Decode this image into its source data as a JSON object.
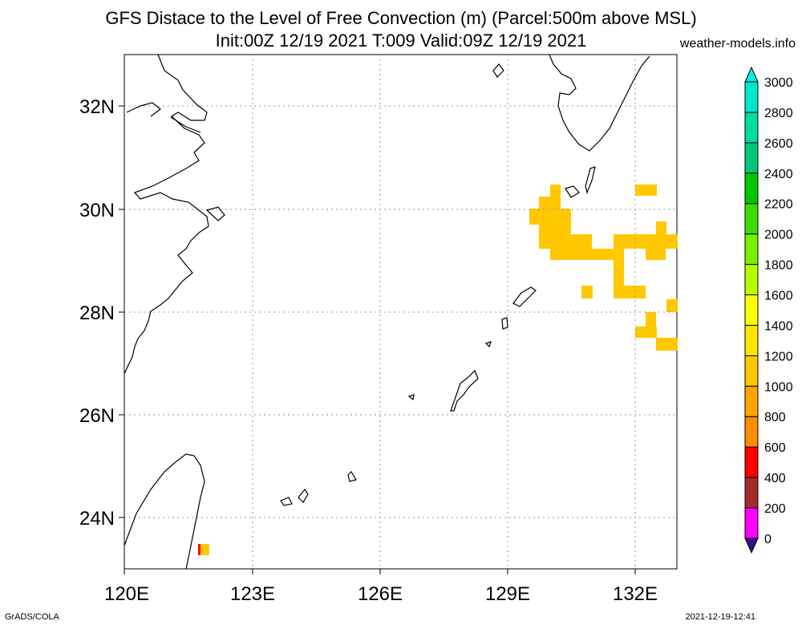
{
  "title": {
    "line1": "GFS Distace to the Level of Free Convection (m) (Parcel:500m above MSL)",
    "line2": "Init:00Z 12/19 2021 T:009 Valid:09Z 12/19 2021",
    "site": "weather-models.info"
  },
  "footer": {
    "left": "GrADS/COLA",
    "right": "2021-12-19-12:41"
  },
  "axes": {
    "lon_labels": [
      "120E",
      "123E",
      "126E",
      "129E",
      "132E"
    ],
    "lat_labels": [
      "24N",
      "26N",
      "28N",
      "30N",
      "32N"
    ]
  },
  "colorbar": {
    "labels": [
      "0",
      "200",
      "400",
      "600",
      "800",
      "1000",
      "1200",
      "1400",
      "1600",
      "1800",
      "2000",
      "2200",
      "2400",
      "2600",
      "2800",
      "3000"
    ],
    "colors": [
      "#3c0a8c",
      "#ff00ff",
      "#a52a2a",
      "#ff0000",
      "#ff8c00",
      "#ffa500",
      "#ffc800",
      "#ffe600",
      "#ffff00",
      "#b4ff00",
      "#78f000",
      "#3cdc00",
      "#00c800",
      "#00c878",
      "#00dca0",
      "#00e6c8",
      "#00f0e6"
    ]
  },
  "colors": {
    "shade_main": "#ffc800",
    "shade_accent": "#ff0000"
  }
}
